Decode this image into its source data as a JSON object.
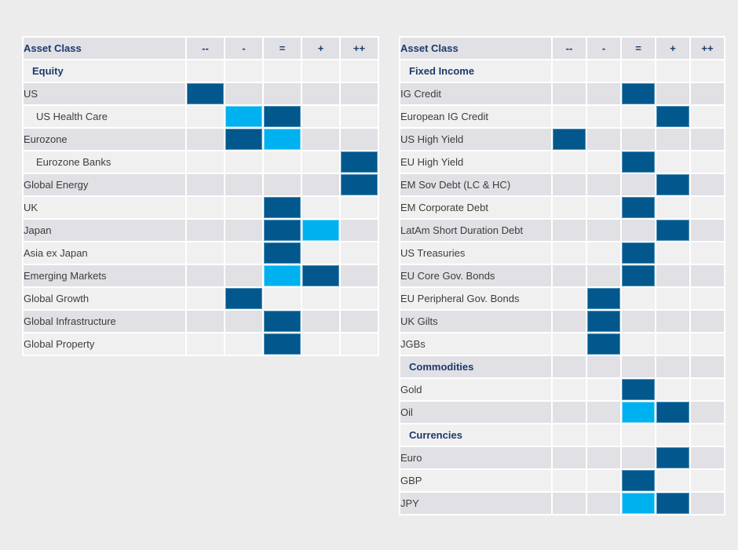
{
  "page": {
    "background": "#ececec"
  },
  "colors": {
    "current_fill": "#02588c",
    "previous_fill": "#00b1f0",
    "heading_text": "#1a3a6b",
    "label_text": "#3d3d3d",
    "row_shade_dark": "#e0e0e5",
    "row_shade_light": "#f0f0f0",
    "cell_gap": "#ffffff"
  },
  "chart_data": [
    {
      "type": "table",
      "name": "equity-allocation",
      "header_label": "Asset Class",
      "columns": [
        "--",
        "-",
        "=",
        "+",
        "++"
      ],
      "legend_semantics": {
        "current": "dark blue filled cell",
        "previous": "light blue filled cell"
      },
      "rows": [
        {
          "label": "Equity",
          "kind": "section"
        },
        {
          "label": "US",
          "kind": "item",
          "current": "--"
        },
        {
          "label": "US Health Care",
          "kind": "subitem",
          "current": "=",
          "previous": "-"
        },
        {
          "label": "Eurozone",
          "kind": "item",
          "current": "-",
          "previous": "="
        },
        {
          "label": "Eurozone Banks",
          "kind": "subitem",
          "current": "++"
        },
        {
          "label": "Global Energy",
          "kind": "item",
          "current": "++"
        },
        {
          "label": "UK",
          "kind": "item",
          "current": "="
        },
        {
          "label": "Japan",
          "kind": "item",
          "current": "=",
          "previous": "+"
        },
        {
          "label": "Asia ex Japan",
          "kind": "item",
          "current": "="
        },
        {
          "label": "Emerging Markets",
          "kind": "item",
          "current": "+",
          "previous": "="
        },
        {
          "label": "Global Growth",
          "kind": "item",
          "current": "-"
        },
        {
          "label": "Global Infrastructure",
          "kind": "item",
          "current": "="
        },
        {
          "label": "Global Property",
          "kind": "item",
          "current": "="
        }
      ]
    },
    {
      "type": "table",
      "name": "fixed-income-commodities-currencies-allocation",
      "header_label": "Asset Class",
      "columns": [
        "--",
        "-",
        "=",
        "+",
        "++"
      ],
      "legend_semantics": {
        "current": "dark blue filled cell",
        "previous": "light blue filled cell"
      },
      "rows": [
        {
          "label": "Fixed Income",
          "kind": "section"
        },
        {
          "label": "IG Credit",
          "kind": "item",
          "current": "="
        },
        {
          "label": "European IG Credit",
          "kind": "item",
          "current": "+"
        },
        {
          "label": "US High Yield",
          "kind": "item",
          "current": "--"
        },
        {
          "label": "EU High Yield",
          "kind": "item",
          "current": "="
        },
        {
          "label": "EM Sov Debt (LC & HC)",
          "kind": "item",
          "current": "+"
        },
        {
          "label": "EM Corporate Debt",
          "kind": "item",
          "current": "="
        },
        {
          "label": "LatAm Short Duration Debt",
          "kind": "item",
          "current": "+"
        },
        {
          "label": "US Treasuries",
          "kind": "item",
          "current": "="
        },
        {
          "label": "EU Core Gov. Bonds",
          "kind": "item",
          "current": "="
        },
        {
          "label": "EU Peripheral Gov. Bonds",
          "kind": "item",
          "current": "-"
        },
        {
          "label": "UK Gilts",
          "kind": "item",
          "current": "-"
        },
        {
          "label": "JGBs",
          "kind": "item",
          "current": "-"
        },
        {
          "label": "Commodities",
          "kind": "section"
        },
        {
          "label": "Gold",
          "kind": "item",
          "current": "="
        },
        {
          "label": "Oil",
          "kind": "item",
          "current": "+",
          "previous": "="
        },
        {
          "label": "Currencies",
          "kind": "section"
        },
        {
          "label": "Euro",
          "kind": "item",
          "current": "+"
        },
        {
          "label": "GBP",
          "kind": "item",
          "current": "="
        },
        {
          "label": "JPY",
          "kind": "item",
          "current": "+",
          "previous": "="
        }
      ]
    }
  ]
}
